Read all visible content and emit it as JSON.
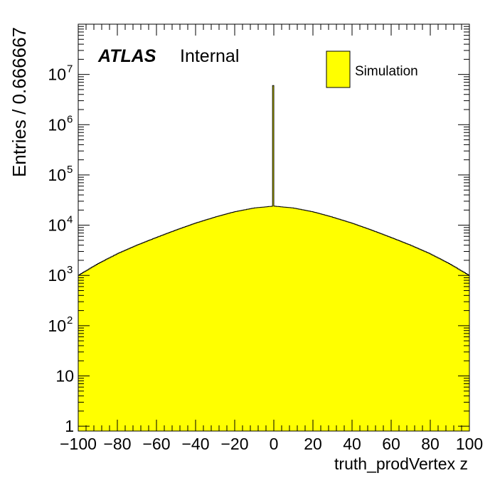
{
  "chart_data": {
    "type": "histogram",
    "xlabel": "truth_prodVertex z",
    "ylabel": "Entries / 0.666667",
    "xlim": [
      -100,
      100
    ],
    "ylim": [
      0.8,
      100000000
    ],
    "log_y": true,
    "grid": false,
    "bin_width": 0.666667,
    "x_ticks": [
      -100,
      -80,
      -60,
      -40,
      -20,
      0,
      20,
      40,
      60,
      80,
      100
    ],
    "x_tick_labels": [
      "−100",
      "−80",
      "−60",
      "−40",
      "−20",
      "0",
      "20",
      "40",
      "60",
      "80",
      "100"
    ],
    "y_ticks": [
      {
        "value": 1,
        "base": "1",
        "exp": ""
      },
      {
        "value": 10,
        "base": "10",
        "exp": ""
      },
      {
        "value": 100,
        "base": "10",
        "exp": "2"
      },
      {
        "value": 1000,
        "base": "10",
        "exp": "3"
      },
      {
        "value": 10000,
        "base": "10",
        "exp": "4"
      },
      {
        "value": 100000,
        "base": "10",
        "exp": "5"
      },
      {
        "value": 1000000,
        "base": "10",
        "exp": "6"
      },
      {
        "value": 10000000,
        "base": "10",
        "exp": "7"
      }
    ],
    "profile": {
      "x": [
        -100,
        -90,
        -80,
        -70,
        -60,
        -50,
        -40,
        -30,
        -20,
        -10,
        0,
        10,
        20,
        30,
        40,
        50,
        60,
        70,
        80,
        90,
        100
      ],
      "y": [
        1000,
        1700,
        2700,
        4000,
        5700,
        8000,
        11000,
        14500,
        18500,
        22000,
        24000,
        22000,
        18500,
        14500,
        11000,
        8000,
        5700,
        4000,
        2700,
        1700,
        1000
      ]
    },
    "spike": {
      "x": 0,
      "y": 6000000
    },
    "series": [
      {
        "name": "Simulation",
        "color": "#ffff00"
      }
    ],
    "legend": {
      "position": "top-right",
      "label": "Simulation"
    },
    "annotation": {
      "bold": "ATLAS",
      "regular": "Internal"
    }
  },
  "colors": {
    "fill": "#ffff00",
    "line": "#000000"
  }
}
